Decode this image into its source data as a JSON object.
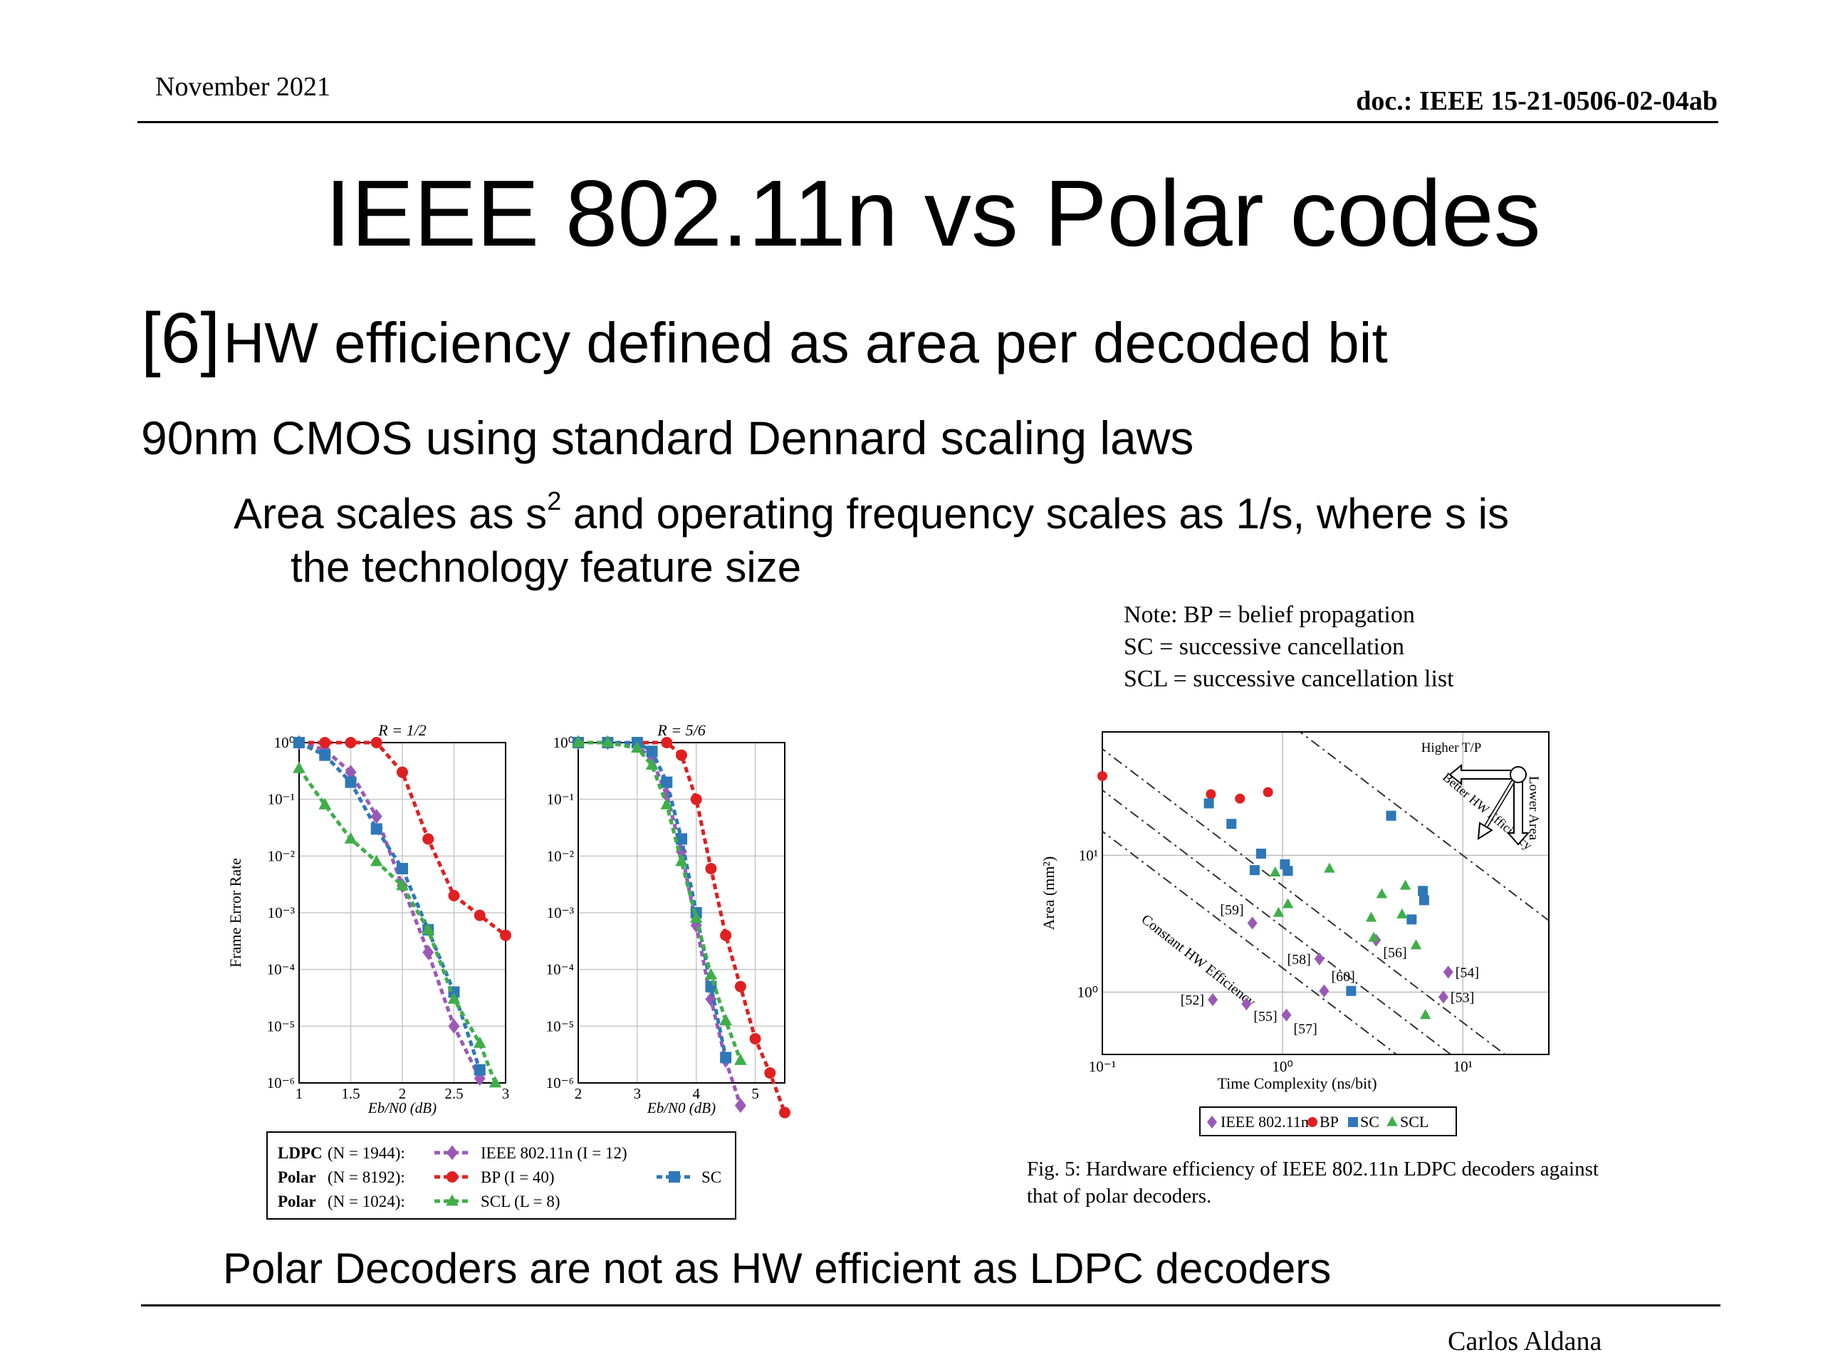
{
  "header": {
    "date": "November 2021",
    "doc": "doc.: IEEE 15-21-0506-02-04ab"
  },
  "title": "IEEE 802.11n vs Polar codes",
  "bullets": {
    "b1_ref": "[6]",
    "b1_text": "HW efficiency defined as area per decoded bit",
    "b2": "90nm CMOS using standard Dennard scaling laws",
    "b3_pre": "Area scales as s",
    "b3_sup": "2",
    "b3_post": " and operating frequency scales as 1/s, where s is",
    "b3_cont": "the technology feature size"
  },
  "note": {
    "line1": "Note: BP = belief propagation",
    "line2": "SC = successive cancellation",
    "line3": "SCL = successive cancellation list"
  },
  "fer_ylabel": "Frame Error Rate",
  "fer_legend": {
    "row1_prefix": "LDPC",
    "row1_n": "(N = 1944):",
    "row1_series": "IEEE 802.11n (I = 12)",
    "row2_prefix": "Polar",
    "row2_n": "(N = 8192):",
    "row2_series": "BP (I = 40)",
    "row2_series_b": "SC",
    "row3_prefix": "Polar",
    "row3_n": "(N = 1024):",
    "row3_series": "SCL (L = 8)"
  },
  "hw_legend": {
    "ieee": "IEEE 802.11n",
    "bp": "BP",
    "sc": "SC",
    "scl": "SCL"
  },
  "hw_annotations": {
    "higher_tp": "Higher T/P",
    "lower_area": "Lower Area",
    "better_hw": "Better HW Efficiency",
    "constant_hw": "Constant HW Efficiency"
  },
  "caption": "Fig. 5: Hardware efficiency of IEEE 802.11n LDPC decoders against that of polar decoders.",
  "conclusion": "Polar Decoders are not as HW efficient as LDPC decoders",
  "footer": {
    "author": "Carlos Aldana"
  },
  "colors": {
    "ieee": "#9b59b6",
    "bp": "#e02020",
    "sc": "#2e78b8",
    "scl": "#3fae49"
  },
  "chart_data": [
    {
      "type": "line",
      "title": "R = 1/2",
      "xlabel": "Eb/N0 (dB)",
      "ylabel": "Frame Error Rate",
      "yscale": "log",
      "xlim": [
        1,
        3
      ],
      "ylim": [
        1e-06,
        1
      ],
      "x_ticks": [
        "1",
        "1.5",
        "2",
        "2.5",
        "3"
      ],
      "y_ticks": [
        "10^0",
        "10^-1",
        "10^-2",
        "10^-3",
        "10^-4",
        "10^-5",
        "10^-6"
      ],
      "grid": true,
      "series": [
        {
          "name": "IEEE 802.11n (I = 12)",
          "x": [
            1,
            1.25,
            1.5,
            1.75,
            2,
            2.25,
            2.5,
            2.75
          ],
          "y": [
            1,
            0.75,
            0.3,
            0.05,
            0.003,
            0.0002,
            1e-05,
            1.2e-06
          ]
        },
        {
          "name": "BP (I = 40)",
          "x": [
            1,
            1.25,
            1.5,
            1.75,
            2,
            2.25,
            2.5,
            2.75,
            3
          ],
          "y": [
            1,
            1,
            1,
            1,
            0.3,
            0.02,
            0.002,
            0.0009,
            0.0004
          ]
        },
        {
          "name": "SC",
          "x": [
            1,
            1.25,
            1.5,
            1.75,
            2,
            2.25,
            2.5,
            2.75
          ],
          "y": [
            1,
            0.6,
            0.2,
            0.03,
            0.006,
            0.0005,
            4e-05,
            1.7e-06
          ]
        },
        {
          "name": "SCL (L = 8)",
          "x": [
            1,
            1.25,
            1.5,
            1.75,
            2,
            2.25,
            2.5,
            2.75,
            2.9
          ],
          "y": [
            0.35,
            0.08,
            0.02,
            0.008,
            0.003,
            0.0005,
            3e-05,
            5e-06,
            1e-06
          ]
        }
      ]
    },
    {
      "type": "line",
      "title": "R = 5/6",
      "xlabel": "Eb/N0 (dB)",
      "yscale": "log",
      "xlim": [
        2,
        5.5
      ],
      "ylim": [
        1e-06,
        1
      ],
      "x_ticks": [
        "2",
        "3",
        "4",
        "5"
      ],
      "y_ticks": [
        "10^0",
        "10^-1",
        "10^-2",
        "10^-3",
        "10^-4",
        "10^-5",
        "10^-6"
      ],
      "grid": true,
      "series": [
        {
          "name": "IEEE 802.11n (I = 12)",
          "x": [
            2,
            2.5,
            3,
            3.25,
            3.5,
            3.75,
            4,
            4.25,
            4.5,
            4.75
          ],
          "y": [
            1,
            1,
            0.9,
            0.5,
            0.12,
            0.012,
            0.0006,
            3e-05,
            2.5e-06,
            4e-07
          ]
        },
        {
          "name": "BP (I = 40)",
          "x": [
            2,
            2.5,
            3,
            3.5,
            3.75,
            4,
            4.25,
            4.5,
            4.75,
            5,
            5.25,
            5.5
          ],
          "y": [
            1,
            1,
            1,
            1,
            0.6,
            0.1,
            0.006,
            0.0004,
            5e-05,
            6e-06,
            1.5e-06,
            3e-07
          ]
        },
        {
          "name": "SC",
          "x": [
            2,
            2.5,
            3,
            3.25,
            3.5,
            3.75,
            4,
            4.25,
            4.5
          ],
          "y": [
            1,
            1,
            1,
            0.7,
            0.2,
            0.02,
            0.001,
            5e-05,
            2.8e-06
          ]
        },
        {
          "name": "SCL (L = 8)",
          "x": [
            2,
            2.5,
            3,
            3.25,
            3.5,
            3.75,
            4,
            4.25,
            4.5,
            4.75
          ],
          "y": [
            1,
            1,
            0.8,
            0.4,
            0.08,
            0.008,
            0.0008,
            8e-05,
            1.25e-05,
            2.5e-06
          ]
        }
      ]
    },
    {
      "type": "scatter",
      "xlabel": "Time Complexity (ns/bit)",
      "ylabel": "Area (mm²)",
      "xscale": "log",
      "yscale": "log",
      "xlim": [
        0.1,
        30
      ],
      "ylim": [
        0.35,
        80
      ],
      "x_ticks": [
        "10^-1",
        "10^0",
        "10^1"
      ],
      "y_ticks": [
        "10^1",
        "10^0"
      ],
      "grid": true,
      "series": [
        {
          "name": "IEEE 802.11n",
          "points": [
            {
              "x": 0.41,
              "y": 0.88,
              "label": "[52]"
            },
            {
              "x": 0.63,
              "y": 0.82,
              "label": "[55]"
            },
            {
              "x": 0.68,
              "y": 3.2,
              "label": "[59]"
            },
            {
              "x": 1.05,
              "y": 0.68,
              "label": "[57]"
            },
            {
              "x": 1.6,
              "y": 1.75,
              "label": "[58]"
            },
            {
              "x": 1.7,
              "y": 1.02,
              "label": "[60]"
            },
            {
              "x": 3.3,
              "y": 2.4,
              "label": "[56]"
            },
            {
              "x": 7.8,
              "y": 0.92,
              "label": "[53]"
            },
            {
              "x": 8.3,
              "y": 1.4,
              "label": "[54]"
            }
          ]
        },
        {
          "name": "BP",
          "points": [
            {
              "x": 0.1,
              "y": 38
            },
            {
              "x": 0.4,
              "y": 28
            },
            {
              "x": 0.58,
              "y": 26
            },
            {
              "x": 0.83,
              "y": 29
            }
          ]
        },
        {
          "name": "SC",
          "points": [
            {
              "x": 0.39,
              "y": 24
            },
            {
              "x": 0.52,
              "y": 17
            },
            {
              "x": 0.7,
              "y": 7.8
            },
            {
              "x": 0.76,
              "y": 10.3
            },
            {
              "x": 1.03,
              "y": 8.6
            },
            {
              "x": 1.07,
              "y": 7.7
            },
            {
              "x": 2.4,
              "y": 1.02
            },
            {
              "x": 4.0,
              "y": 19.5
            },
            {
              "x": 5.2,
              "y": 3.4
            },
            {
              "x": 6.0,
              "y": 5.5
            },
            {
              "x": 6.1,
              "y": 4.7
            }
          ]
        },
        {
          "name": "SCL",
          "points": [
            {
              "x": 0.91,
              "y": 7.5
            },
            {
              "x": 0.95,
              "y": 3.8
            },
            {
              "x": 1.07,
              "y": 4.4
            },
            {
              "x": 1.82,
              "y": 8.0
            },
            {
              "x": 3.1,
              "y": 3.5
            },
            {
              "x": 3.2,
              "y": 2.5
            },
            {
              "x": 3.55,
              "y": 5.2
            },
            {
              "x": 4.6,
              "y": 3.7
            },
            {
              "x": 4.8,
              "y": 6.0
            },
            {
              "x": 5.5,
              "y": 2.2
            },
            {
              "x": 6.2,
              "y": 0.68
            }
          ]
        }
      ]
    }
  ]
}
